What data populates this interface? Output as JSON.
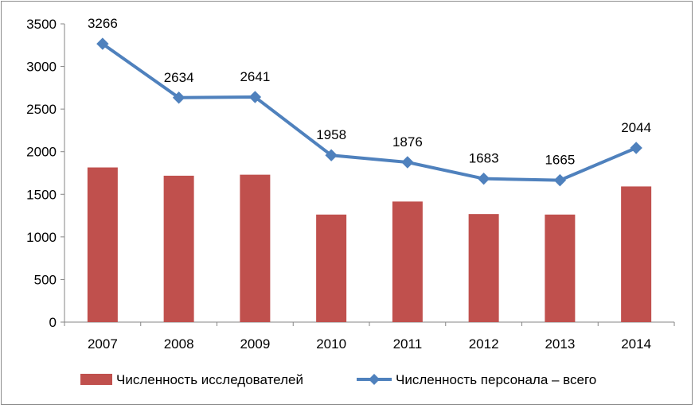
{
  "chart_data": {
    "type": "bar",
    "categories": [
      "2007",
      "2008",
      "2009",
      "2010",
      "2011",
      "2012",
      "2013",
      "2014"
    ],
    "ylim": [
      0,
      3500
    ],
    "yticks": [
      "0",
      "500",
      "1000",
      "1500",
      "2000",
      "2500",
      "3000",
      "3500"
    ],
    "grid": false,
    "legend_position": "bottom",
    "series": [
      {
        "name": "Численность исследователей",
        "type": "bar",
        "color": "#c0504d",
        "values": [
          1815,
          1718,
          1730,
          1262,
          1415,
          1268,
          1262,
          1592
        ]
      },
      {
        "name": "Численность персонала – всего",
        "type": "line",
        "color": "#4f81bd",
        "marker": "diamond",
        "values": [
          3266,
          2634,
          2641,
          1958,
          1876,
          1683,
          1665,
          2044
        ],
        "data_labels": [
          "3266",
          "2634",
          "2641",
          "1958",
          "1876",
          "1683",
          "1665",
          "2044"
        ]
      }
    ]
  }
}
